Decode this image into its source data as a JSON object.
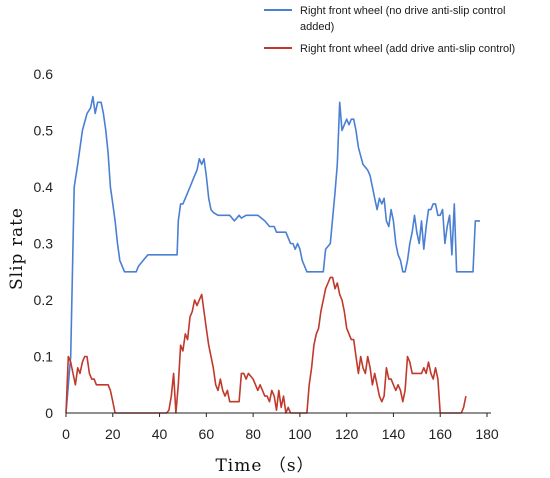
{
  "chart_data": {
    "type": "line",
    "xlabel": "Time （s）",
    "ylabel": "Slip rate",
    "xlim": [
      0,
      180
    ],
    "ylim": [
      0,
      0.6
    ],
    "x_ticks": [
      "0",
      "20",
      "40",
      "60",
      "80",
      "100",
      "120",
      "140",
      "160",
      "180"
    ],
    "y_ticks": [
      "0",
      "0.1",
      "0.2",
      "0.3",
      "0.4",
      "0.5",
      "0.6"
    ],
    "grid": false,
    "legend_position": "top-right",
    "series": [
      {
        "name": "Right front wheel (no drive anti-slip control added)",
        "legend_lines": [
          "Right front wheel (no drive anti-slip control",
          "added)"
        ],
        "color": "#4a7fd4",
        "points": [
          [
            0,
            0
          ],
          [
            2,
            0.1
          ],
          [
            3.5,
            0.4
          ],
          [
            5,
            0.44
          ],
          [
            7,
            0.5
          ],
          [
            9,
            0.53
          ],
          [
            10.5,
            0.54
          ],
          [
            11.5,
            0.56
          ],
          [
            12.5,
            0.53
          ],
          [
            13.5,
            0.55
          ],
          [
            15,
            0.55
          ],
          [
            16,
            0.53
          ],
          [
            17,
            0.5
          ],
          [
            18,
            0.46
          ],
          [
            19,
            0.4
          ],
          [
            20,
            0.37
          ],
          [
            21,
            0.34
          ],
          [
            22,
            0.3
          ],
          [
            23,
            0.27
          ],
          [
            25,
            0.25
          ],
          [
            28,
            0.25
          ],
          [
            30,
            0.25
          ],
          [
            31,
            0.26
          ],
          [
            33,
            0.27
          ],
          [
            35,
            0.28
          ],
          [
            40,
            0.28
          ],
          [
            43,
            0.28
          ],
          [
            46,
            0.28
          ],
          [
            47.5,
            0.28
          ],
          [
            48,
            0.34
          ],
          [
            49,
            0.37
          ],
          [
            50,
            0.37
          ],
          [
            51,
            0.38
          ],
          [
            52,
            0.39
          ],
          [
            53,
            0.4
          ],
          [
            54,
            0.41
          ],
          [
            55,
            0.42
          ],
          [
            56,
            0.43
          ],
          [
            57,
            0.45
          ],
          [
            58,
            0.44
          ],
          [
            59,
            0.45
          ],
          [
            60,
            0.42
          ],
          [
            61,
            0.38
          ],
          [
            62,
            0.36
          ],
          [
            63,
            0.355
          ],
          [
            65,
            0.35
          ],
          [
            70,
            0.35
          ],
          [
            72,
            0.34
          ],
          [
            74,
            0.35
          ],
          [
            75,
            0.345
          ],
          [
            77,
            0.35
          ],
          [
            82,
            0.35
          ],
          [
            85,
            0.34
          ],
          [
            87,
            0.33
          ],
          [
            89,
            0.33
          ],
          [
            90,
            0.32
          ],
          [
            92,
            0.32
          ],
          [
            94,
            0.32
          ],
          [
            95,
            0.31
          ],
          [
            96,
            0.3
          ],
          [
            97,
            0.3
          ],
          [
            98,
            0.29
          ],
          [
            99,
            0.3
          ],
          [
            100,
            0.29
          ],
          [
            101,
            0.27
          ],
          [
            103,
            0.25
          ],
          [
            107,
            0.25
          ],
          [
            110,
            0.25
          ],
          [
            111,
            0.29
          ],
          [
            113,
            0.3
          ],
          [
            115,
            0.39
          ],
          [
            116,
            0.44
          ],
          [
            117,
            0.55
          ],
          [
            118,
            0.5
          ],
          [
            119,
            0.51
          ],
          [
            120,
            0.52
          ],
          [
            121,
            0.51
          ],
          [
            122,
            0.52
          ],
          [
            123,
            0.52
          ],
          [
            124,
            0.5
          ],
          [
            125,
            0.47
          ],
          [
            127,
            0.44
          ],
          [
            129,
            0.43
          ],
          [
            130,
            0.42
          ],
          [
            131,
            0.4
          ],
          [
            132,
            0.38
          ],
          [
            133,
            0.36
          ],
          [
            134,
            0.38
          ],
          [
            135,
            0.37
          ],
          [
            136,
            0.38
          ],
          [
            137,
            0.34
          ],
          [
            138,
            0.33
          ],
          [
            139,
            0.36
          ],
          [
            140,
            0.34
          ],
          [
            141,
            0.3
          ],
          [
            142,
            0.28
          ],
          [
            143,
            0.27
          ],
          [
            144,
            0.25
          ],
          [
            145,
            0.25
          ],
          [
            146,
            0.27
          ],
          [
            147,
            0.3
          ],
          [
            148,
            0.32
          ],
          [
            149,
            0.35
          ],
          [
            150,
            0.32
          ],
          [
            151,
            0.3
          ],
          [
            152,
            0.34
          ],
          [
            153,
            0.29
          ],
          [
            154,
            0.33
          ],
          [
            155,
            0.36
          ],
          [
            156,
            0.36
          ],
          [
            157,
            0.37
          ],
          [
            158,
            0.37
          ],
          [
            159,
            0.35
          ],
          [
            160,
            0.35
          ],
          [
            161,
            0.36
          ],
          [
            162,
            0.3
          ],
          [
            163,
            0.33
          ],
          [
            164,
            0.35
          ],
          [
            165,
            0.28
          ],
          [
            166,
            0.37
          ],
          [
            167,
            0.25
          ],
          [
            170,
            0.25
          ],
          [
            173,
            0.25
          ],
          [
            174,
            0.25
          ],
          [
            175,
            0.34
          ],
          [
            177,
            0.34
          ]
        ]
      },
      {
        "name": "Right front wheel (add drive anti-slip control)",
        "legend_lines": [
          "Right front wheel (add drive anti-slip control)"
        ],
        "color": "#c0392b",
        "points": [
          [
            0,
            0
          ],
          [
            1,
            0.1
          ],
          [
            2,
            0.09
          ],
          [
            3,
            0.07
          ],
          [
            4,
            0.05
          ],
          [
            5,
            0.08
          ],
          [
            6,
            0.07
          ],
          [
            7,
            0.09
          ],
          [
            8,
            0.1
          ],
          [
            9,
            0.1
          ],
          [
            10,
            0.07
          ],
          [
            11,
            0.06
          ],
          [
            12,
            0.06
          ],
          [
            13,
            0.05
          ],
          [
            16,
            0.05
          ],
          [
            18,
            0.05
          ],
          [
            19,
            0.04
          ],
          [
            20,
            0.02
          ],
          [
            21,
            0
          ],
          [
            25,
            0
          ],
          [
            40,
            0
          ],
          [
            43,
            0
          ],
          [
            44,
            0.005
          ],
          [
            45,
            0.03
          ],
          [
            46,
            0.07
          ],
          [
            47,
            0
          ],
          [
            48,
            0.05
          ],
          [
            49,
            0.12
          ],
          [
            50,
            0.11
          ],
          [
            51,
            0.14
          ],
          [
            52,
            0.13
          ],
          [
            53,
            0.17
          ],
          [
            54,
            0.18
          ],
          [
            55,
            0.2
          ],
          [
            56,
            0.19
          ],
          [
            57,
            0.2
          ],
          [
            58,
            0.21
          ],
          [
            59,
            0.18
          ],
          [
            60,
            0.15
          ],
          [
            61,
            0.12
          ],
          [
            62,
            0.1
          ],
          [
            63,
            0.08
          ],
          [
            64,
            0.05
          ],
          [
            65,
            0.04
          ],
          [
            66,
            0.06
          ],
          [
            67,
            0.04
          ],
          [
            68,
            0.03
          ],
          [
            69,
            0.04
          ],
          [
            70,
            0.02
          ],
          [
            72,
            0.02
          ],
          [
            74,
            0.02
          ],
          [
            75,
            0.07
          ],
          [
            76,
            0.07
          ],
          [
            77,
            0.06
          ],
          [
            78,
            0.07
          ],
          [
            80,
            0.06
          ],
          [
            81,
            0.05
          ],
          [
            82,
            0.04
          ],
          [
            83,
            0.05
          ],
          [
            84,
            0.04
          ],
          [
            85,
            0.03
          ],
          [
            86,
            0.03
          ],
          [
            87,
            0.02
          ],
          [
            88,
            0.04
          ],
          [
            89,
            0.03
          ],
          [
            90,
            0.005
          ],
          [
            91,
            0.04
          ],
          [
            92,
            0.01
          ],
          [
            93,
            0.03
          ],
          [
            94,
            0
          ],
          [
            95,
            0.01
          ],
          [
            96,
            0
          ],
          [
            100,
            0
          ],
          [
            103,
            0
          ],
          [
            104,
            0.05
          ],
          [
            105,
            0.08
          ],
          [
            106,
            0.12
          ],
          [
            107,
            0.14
          ],
          [
            108,
            0.15
          ],
          [
            109,
            0.18
          ],
          [
            110,
            0.2
          ],
          [
            111,
            0.22
          ],
          [
            112,
            0.23
          ],
          [
            113,
            0.24
          ],
          [
            114,
            0.24
          ],
          [
            115,
            0.22
          ],
          [
            116,
            0.23
          ],
          [
            117,
            0.21
          ],
          [
            118,
            0.2
          ],
          [
            119,
            0.18
          ],
          [
            120,
            0.15
          ],
          [
            121,
            0.14
          ],
          [
            122,
            0.13
          ],
          [
            123,
            0.13
          ],
          [
            124,
            0.1
          ],
          [
            125,
            0.07
          ],
          [
            126,
            0.1
          ],
          [
            127,
            0.08
          ],
          [
            128,
            0.07
          ],
          [
            129,
            0.1
          ],
          [
            130,
            0.08
          ],
          [
            131,
            0.05
          ],
          [
            132,
            0.07
          ],
          [
            133,
            0.05
          ],
          [
            134,
            0.03
          ],
          [
            135,
            0.02
          ],
          [
            136,
            0.03
          ],
          [
            137,
            0.08
          ],
          [
            138,
            0.06
          ],
          [
            139,
            0.06
          ],
          [
            140,
            0.05
          ],
          [
            141,
            0.04
          ],
          [
            142,
            0.05
          ],
          [
            143,
            0.04
          ],
          [
            144,
            0.02
          ],
          [
            145,
            0.04
          ],
          [
            146,
            0.1
          ],
          [
            147,
            0.09
          ],
          [
            148,
            0.07
          ],
          [
            150,
            0.07
          ],
          [
            152,
            0.07
          ],
          [
            153,
            0.08
          ],
          [
            154,
            0.07
          ],
          [
            155,
            0.09
          ],
          [
            156,
            0.07
          ],
          [
            157,
            0.06
          ],
          [
            158,
            0.08
          ],
          [
            159,
            0.06
          ],
          [
            160,
            0
          ],
          [
            166,
            0
          ],
          [
            169,
            0
          ],
          [
            170,
            0.01
          ],
          [
            171,
            0.03
          ]
        ]
      }
    ]
  }
}
